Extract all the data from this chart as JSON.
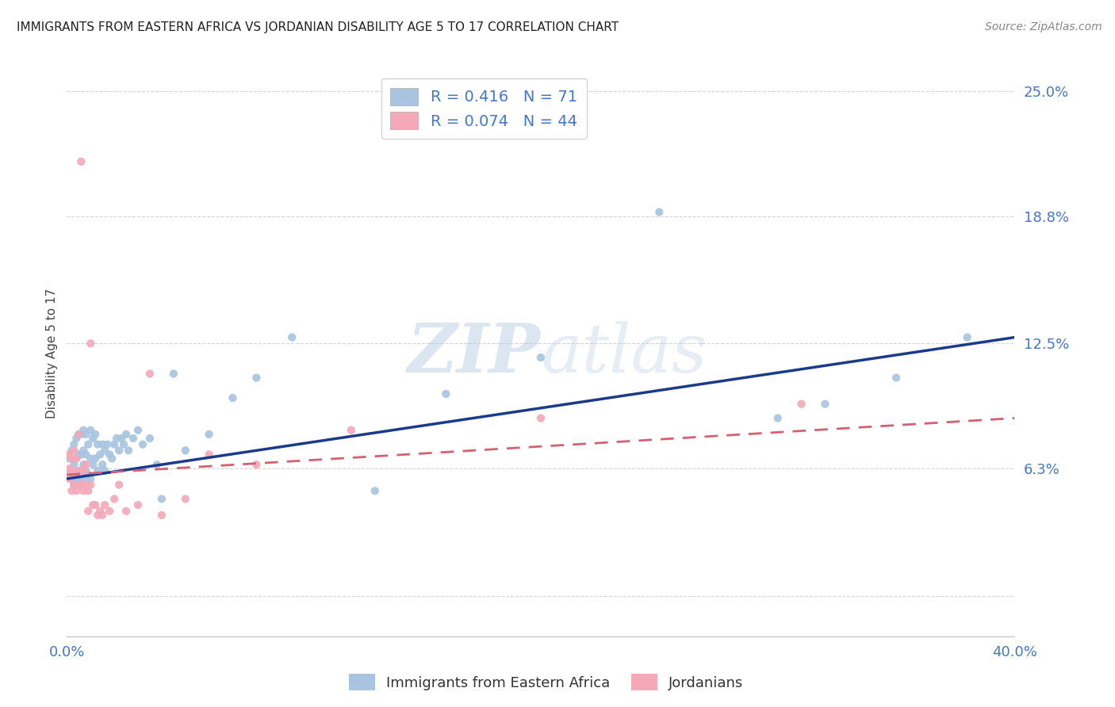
{
  "title": "IMMIGRANTS FROM EASTERN AFRICA VS JORDANIAN DISABILITY AGE 5 TO 17 CORRELATION CHART",
  "source": "Source: ZipAtlas.com",
  "ylabel": "Disability Age 5 to 17",
  "xlim": [
    0.0,
    0.4
  ],
  "ylim": [
    -0.02,
    0.26
  ],
  "ytick_vals": [
    0.0,
    0.063,
    0.125,
    0.188,
    0.25
  ],
  "ytick_labels": [
    "",
    "6.3%",
    "12.5%",
    "18.8%",
    "25.0%"
  ],
  "xtick_vals": [
    0.0,
    0.1,
    0.2,
    0.3,
    0.4
  ],
  "xtick_labels": [
    "0.0%",
    "",
    "",
    "",
    "40.0%"
  ],
  "blue_R": 0.416,
  "blue_N": 71,
  "pink_R": 0.074,
  "pink_N": 44,
  "blue_color": "#a8c4e0",
  "pink_color": "#f4a8b8",
  "blue_line_color": "#1a3a8a",
  "pink_line_color": "#d46070",
  "blue_scatter_x": [
    0.001,
    0.001,
    0.002,
    0.002,
    0.003,
    0.003,
    0.003,
    0.004,
    0.004,
    0.004,
    0.005,
    0.005,
    0.005,
    0.005,
    0.006,
    0.006,
    0.006,
    0.006,
    0.007,
    0.007,
    0.007,
    0.007,
    0.008,
    0.008,
    0.008,
    0.009,
    0.009,
    0.01,
    0.01,
    0.01,
    0.011,
    0.011,
    0.012,
    0.012,
    0.013,
    0.013,
    0.014,
    0.015,
    0.015,
    0.016,
    0.016,
    0.017,
    0.018,
    0.019,
    0.02,
    0.021,
    0.022,
    0.023,
    0.024,
    0.025,
    0.026,
    0.028,
    0.03,
    0.032,
    0.035,
    0.038,
    0.04,
    0.045,
    0.05,
    0.06,
    0.07,
    0.08,
    0.095,
    0.13,
    0.16,
    0.2,
    0.25,
    0.3,
    0.32,
    0.35,
    0.38
  ],
  "blue_scatter_y": [
    0.06,
    0.068,
    0.058,
    0.072,
    0.055,
    0.065,
    0.075,
    0.058,
    0.068,
    0.078,
    0.055,
    0.062,
    0.07,
    0.08,
    0.055,
    0.062,
    0.07,
    0.08,
    0.058,
    0.065,
    0.072,
    0.082,
    0.062,
    0.07,
    0.08,
    0.06,
    0.075,
    0.058,
    0.068,
    0.082,
    0.065,
    0.078,
    0.068,
    0.08,
    0.062,
    0.075,
    0.07,
    0.065,
    0.075,
    0.062,
    0.072,
    0.075,
    0.07,
    0.068,
    0.075,
    0.078,
    0.072,
    0.078,
    0.075,
    0.08,
    0.072,
    0.078,
    0.082,
    0.075,
    0.078,
    0.065,
    0.048,
    0.11,
    0.072,
    0.08,
    0.098,
    0.108,
    0.128,
    0.052,
    0.1,
    0.118,
    0.19,
    0.088,
    0.095,
    0.108,
    0.128
  ],
  "pink_scatter_x": [
    0.001,
    0.001,
    0.001,
    0.002,
    0.002,
    0.002,
    0.003,
    0.003,
    0.003,
    0.004,
    0.004,
    0.004,
    0.005,
    0.005,
    0.006,
    0.006,
    0.006,
    0.007,
    0.007,
    0.008,
    0.008,
    0.009,
    0.009,
    0.01,
    0.01,
    0.011,
    0.012,
    0.013,
    0.014,
    0.015,
    0.016,
    0.018,
    0.02,
    0.022,
    0.025,
    0.03,
    0.035,
    0.04,
    0.05,
    0.06,
    0.08,
    0.12,
    0.2,
    0.31
  ],
  "pink_scatter_y": [
    0.058,
    0.063,
    0.07,
    0.052,
    0.06,
    0.068,
    0.055,
    0.062,
    0.072,
    0.052,
    0.06,
    0.068,
    0.055,
    0.08,
    0.055,
    0.062,
    0.215,
    0.052,
    0.062,
    0.055,
    0.065,
    0.042,
    0.052,
    0.055,
    0.125,
    0.045,
    0.045,
    0.04,
    0.042,
    0.04,
    0.045,
    0.042,
    0.048,
    0.055,
    0.042,
    0.045,
    0.11,
    0.04,
    0.048,
    0.07,
    0.065,
    0.082,
    0.088,
    0.095
  ],
  "blue_trend_x": [
    0.0,
    0.4
  ],
  "blue_trend_y": [
    0.058,
    0.128
  ],
  "pink_trend_x": [
    0.0,
    0.4
  ],
  "pink_trend_y": [
    0.06,
    0.088
  ],
  "watermark_zip": "ZIP",
  "watermark_atlas": "atlas",
  "background_color": "#ffffff",
  "grid_color": "#d0d0d0",
  "tick_color": "#4477cc",
  "title_color": "#222222",
  "source_color": "#888888"
}
